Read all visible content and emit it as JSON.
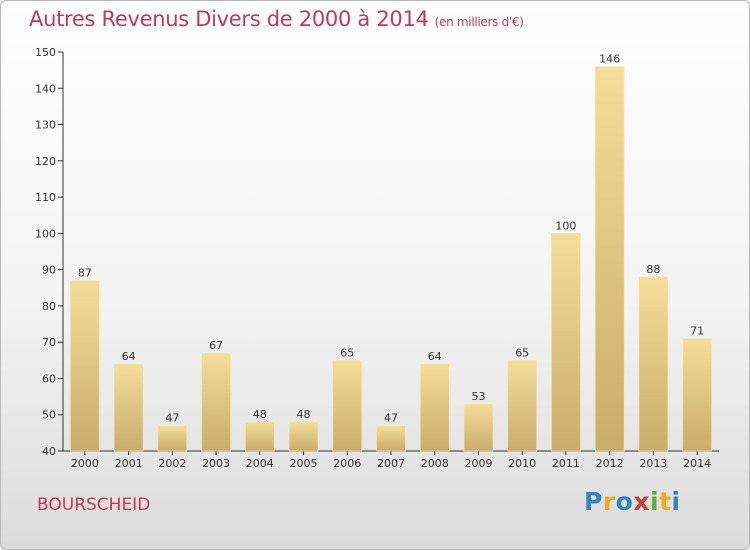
{
  "title": "Autres Revenus Divers de 2000 à 2014",
  "subtitle": "(en milliers d'€)",
  "region": "BOURSCHEID",
  "logo": {
    "letters": [
      "P",
      "r",
      "o",
      "x",
      "i",
      "t",
      "i"
    ],
    "colors": [
      "#2e86c8",
      "#f2a91a",
      "#2e86c8",
      "#d23b3b",
      "#5fae3a",
      "#f2a91a",
      "#2e86c8"
    ]
  },
  "colors": {
    "title": "#c0395c",
    "bar_light": "#f5dd9a",
    "bar_dark": "#c9ad6a",
    "axis": "#333333"
  },
  "chart_data": {
    "type": "bar",
    "categories": [
      "2000",
      "2001",
      "2002",
      "2003",
      "2004",
      "2005",
      "2006",
      "2007",
      "2008",
      "2009",
      "2010",
      "2011",
      "2012",
      "2013",
      "2014"
    ],
    "values": [
      87,
      64,
      47,
      67,
      48,
      48,
      65,
      47,
      64,
      53,
      65,
      100,
      146,
      88,
      71
    ],
    "ylim": [
      40,
      150
    ],
    "yticks": [
      40,
      50,
      60,
      70,
      80,
      90,
      100,
      110,
      120,
      130,
      140,
      150
    ],
    "grid": false,
    "legend": "none"
  }
}
